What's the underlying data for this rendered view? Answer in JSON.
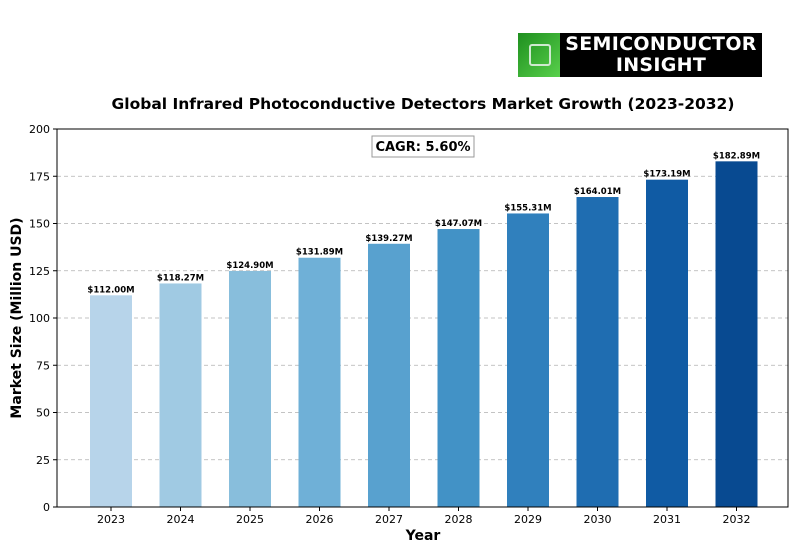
{
  "logo": {
    "line1": "SEMICONDUCTOR",
    "line2": "INSIGHT"
  },
  "chart_data": {
    "type": "bar",
    "title": "Global Infrared Photoconductive Detectors Market Growth (2023-2032)",
    "xlabel": "Year",
    "ylabel": "Market Size (Million USD)",
    "ylim": [
      0,
      200
    ],
    "yticks": [
      0,
      25,
      50,
      75,
      100,
      125,
      150,
      175,
      200
    ],
    "grid": "y-dashed",
    "categories": [
      "2023",
      "2024",
      "2025",
      "2026",
      "2027",
      "2028",
      "2029",
      "2030",
      "2031",
      "2032"
    ],
    "values": [
      112.0,
      118.27,
      124.9,
      131.89,
      139.27,
      147.07,
      155.31,
      164.01,
      173.19,
      182.89
    ],
    "data_labels": [
      "$112.00M",
      "$118.27M",
      "$124.90M",
      "$131.89M",
      "$139.27M",
      "$147.07M",
      "$155.31M",
      "$164.01M",
      "$173.19M",
      "$182.89M"
    ],
    "colors": [
      "#b7d4ea",
      "#a0cae3",
      "#88bedc",
      "#6fb0d7",
      "#58a1cf",
      "#4292c6",
      "#3080bd",
      "#1f6db1",
      "#105ba4",
      "#084a91"
    ],
    "annotation": "CAGR: 5.60%"
  }
}
